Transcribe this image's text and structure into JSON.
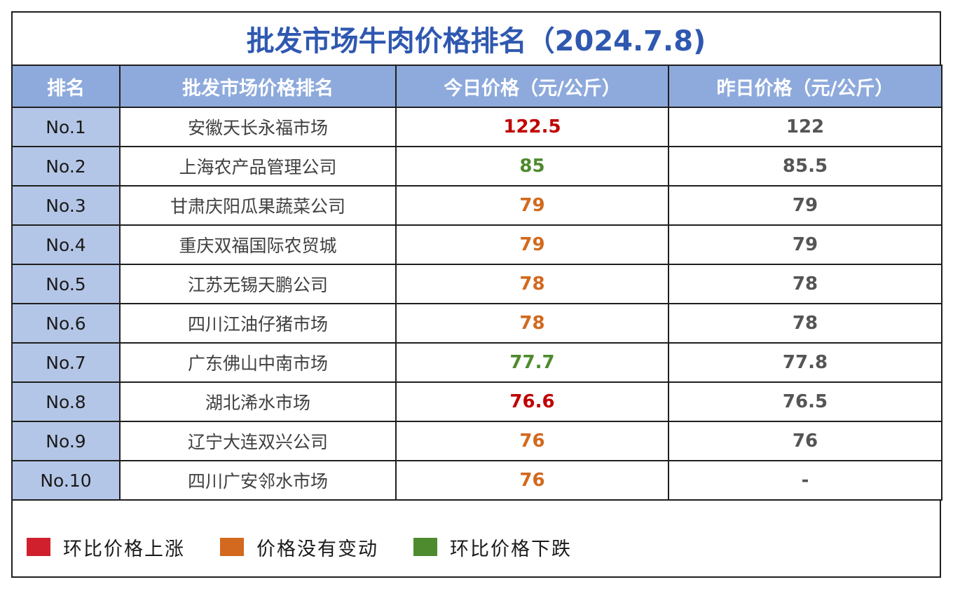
{
  "title": "批发市场牛肉价格排名（2024.7.8)",
  "table": {
    "headers": {
      "rank": "排名",
      "market": "批发市场价格排名",
      "today": "今日价格（元/公斤）",
      "yesterday": "昨日价格（元/公斤）"
    },
    "rows": [
      {
        "rank": "No.1",
        "market": "安徽天长永福市场",
        "today": "122.5",
        "yesterday": "122",
        "trend": "up"
      },
      {
        "rank": "No.2",
        "market": "上海农产品管理公司",
        "today": "85",
        "yesterday": "85.5",
        "trend": "down"
      },
      {
        "rank": "No.3",
        "market": "甘肃庆阳瓜果蔬菜公司",
        "today": "79",
        "yesterday": "79",
        "trend": "same"
      },
      {
        "rank": "No.4",
        "market": "重庆双福国际农贸城",
        "today": "79",
        "yesterday": "79",
        "trend": "same"
      },
      {
        "rank": "No.5",
        "market": "江苏无锡天鹏公司",
        "today": "78",
        "yesterday": "78",
        "trend": "same"
      },
      {
        "rank": "No.6",
        "market": "四川江油仔猪市场",
        "today": "78",
        "yesterday": "78",
        "trend": "same"
      },
      {
        "rank": "No.7",
        "market": "广东佛山中南市场",
        "today": "77.7",
        "yesterday": "77.8",
        "trend": "down"
      },
      {
        "rank": "No.8",
        "market": "湖北浠水市场",
        "today": "76.6",
        "yesterday": "76.5",
        "trend": "up"
      },
      {
        "rank": "No.9",
        "market": "辽宁大连双兴公司",
        "today": "76",
        "yesterday": "76",
        "trend": "same"
      },
      {
        "rank": "No.10",
        "market": "四川广安邻水市场",
        "today": "76",
        "yesterday": "-",
        "trend": "same"
      }
    ]
  },
  "legend": {
    "items": [
      {
        "label": "环比价格上涨",
        "color": "#d0202e"
      },
      {
        "label": "价格没有变动",
        "color": "#d2691e"
      },
      {
        "label": "环比价格下跌",
        "color": "#4e8a2e"
      }
    ]
  }
}
